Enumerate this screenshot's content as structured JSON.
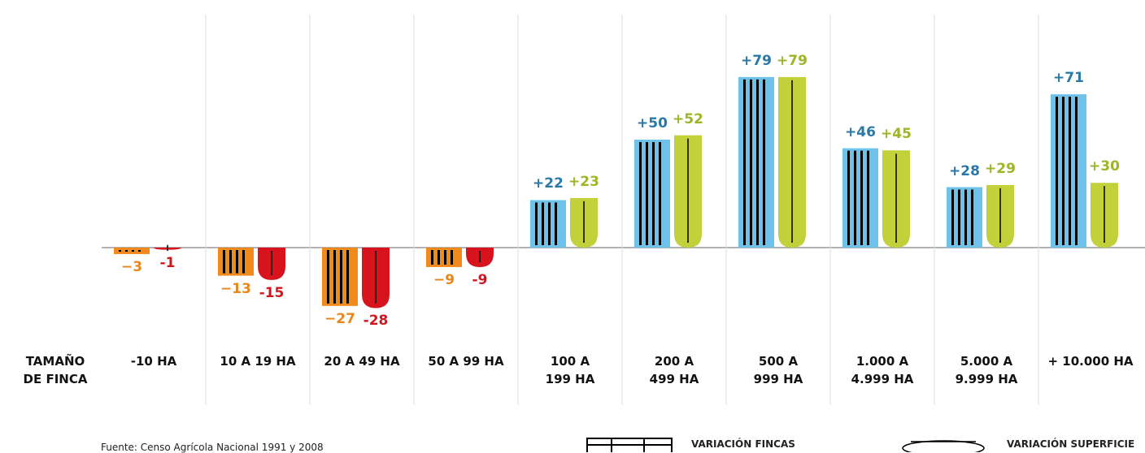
{
  "chart_data": {
    "type": "bar",
    "axis_label": "TAMAÑO\nDE FINCA",
    "categories": [
      "-10 HA",
      "10 A 19 HA",
      "20 A 49 HA",
      "50 A 99 HA",
      "100 A\n199 HA",
      "200 A\n499 HA",
      "500 A\n999 HA",
      "1.000 A\n4.999 HA",
      "5.000 A\n9.999 HA",
      "+ 10.000 HA"
    ],
    "series": [
      {
        "name": "VARIACIÓN FINCAS",
        "positive_color": "#6cc2ea",
        "negative_color": "#f08a1c",
        "positive_label_color": "#2a78a6",
        "negative_label_color": "#e8871e",
        "values": [
          -3,
          -13,
          -27,
          -9,
          22,
          50,
          79,
          46,
          28,
          71
        ],
        "value_labels": [
          "−3",
          "−13",
          "−27",
          "−9",
          "+22",
          "+50",
          "+79",
          "+46",
          "+28",
          "+71"
        ]
      },
      {
        "name": "VARIACIÓN SUPERFICIE",
        "positive_color": "#c2d03a",
        "negative_color": "#d7141d",
        "positive_label_color": "#9db526",
        "negative_label_color": "#d0161e",
        "values": [
          -1,
          -15,
          -28,
          -9,
          23,
          52,
          79,
          45,
          29,
          30
        ],
        "value_labels": [
          "-1",
          "-15",
          "-28",
          "-9",
          "+23",
          "+52",
          "+79",
          "+45",
          "+29",
          "+30"
        ]
      }
    ],
    "source": "Fuente: Censo Agrícola Nacional 1991 y 2008"
  }
}
